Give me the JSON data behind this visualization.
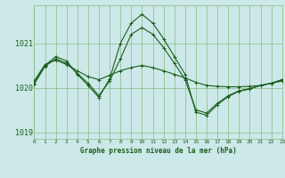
{
  "title": "Graphe pression niveau de la mer (hPa)",
  "bg_color": "#cce8e8",
  "grid_color": "#88bb88",
  "line_color": "#1a5e1a",
  "xlim": [
    0,
    23
  ],
  "ylim": [
    1018.85,
    1021.85
  ],
  "yticks": [
    1019,
    1020,
    1021
  ],
  "xticks": [
    0,
    1,
    2,
    3,
    4,
    5,
    6,
    7,
    8,
    9,
    10,
    11,
    12,
    13,
    14,
    15,
    16,
    17,
    18,
    19,
    20,
    21,
    22,
    23
  ],
  "series1_y": [
    1020.1,
    1020.5,
    1020.7,
    1020.6,
    1020.3,
    1020.05,
    1019.78,
    1020.2,
    1021.0,
    1021.45,
    1021.65,
    1021.45,
    1021.1,
    1020.7,
    1020.3,
    1019.45,
    1019.38,
    1019.62,
    1019.8,
    1019.92,
    1019.97,
    1020.05,
    1020.1,
    1020.18
  ],
  "series2_y": [
    1020.15,
    1020.52,
    1020.62,
    1020.52,
    1020.38,
    1020.25,
    1020.18,
    1020.28,
    1020.38,
    1020.45,
    1020.5,
    1020.45,
    1020.38,
    1020.3,
    1020.22,
    1020.12,
    1020.05,
    1020.03,
    1020.02,
    1020.02,
    1020.03,
    1020.05,
    1020.1,
    1020.15
  ],
  "series3_y": [
    1020.08,
    1020.48,
    1020.65,
    1020.55,
    1020.32,
    1020.1,
    1019.82,
    1020.15,
    1020.65,
    1021.2,
    1021.35,
    1021.2,
    1020.9,
    1020.55,
    1020.18,
    1019.5,
    1019.43,
    1019.65,
    1019.82,
    1019.93,
    1019.98,
    1020.05,
    1020.1,
    1020.18
  ]
}
